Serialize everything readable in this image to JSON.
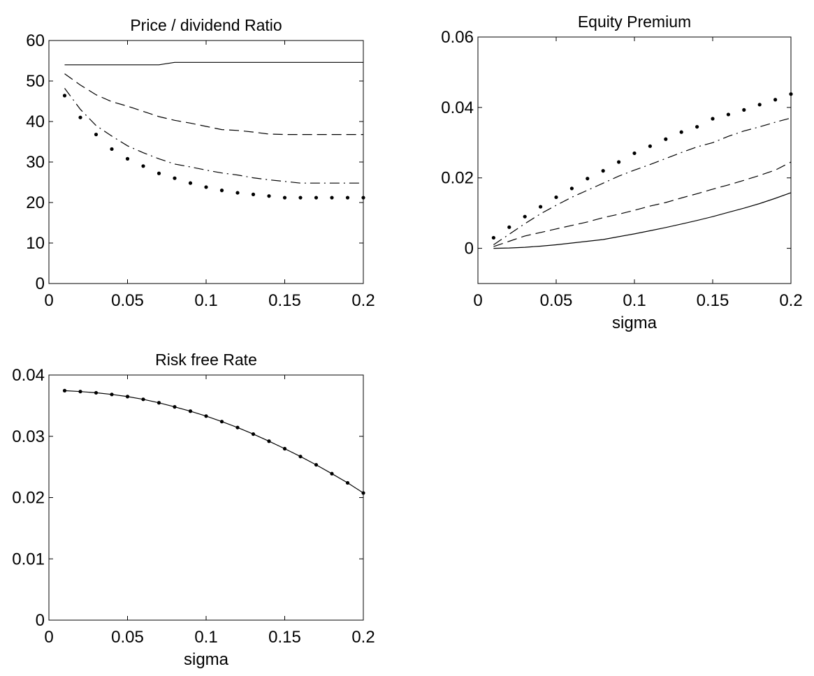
{
  "chart_data": [
    {
      "type": "line",
      "title": "Price / dividend Ratio",
      "xlabel": "",
      "ylabel": "",
      "xlim": [
        0,
        0.2
      ],
      "ylim": [
        0,
        60
      ],
      "xticks": [
        "0",
        "0.05",
        "0.1",
        "0.15",
        "0.2"
      ],
      "yticks": [
        "0",
        "10",
        "20",
        "30",
        "40",
        "50",
        "60"
      ],
      "grid": false,
      "series": [
        {
          "style": "solid",
          "x": [
            0.01,
            0.02,
            0.03,
            0.04,
            0.05,
            0.06,
            0.07,
            0.08,
            0.09,
            0.1,
            0.11,
            0.12,
            0.13,
            0.14,
            0.15,
            0.16,
            0.17,
            0.18,
            0.19,
            0.2
          ],
          "y": [
            54.0,
            54.0,
            54.0,
            54.0,
            54.0,
            54.0,
            54.0,
            54.6,
            54.6,
            54.6,
            54.6,
            54.6,
            54.6,
            54.6,
            54.6,
            54.6,
            54.6,
            54.6,
            54.6,
            54.6
          ]
        },
        {
          "style": "dashed",
          "x": [
            0.01,
            0.02,
            0.03,
            0.04,
            0.05,
            0.06,
            0.07,
            0.08,
            0.09,
            0.1,
            0.11,
            0.12,
            0.13,
            0.14,
            0.15,
            0.16,
            0.17,
            0.18,
            0.19,
            0.2
          ],
          "y": [
            51.8,
            49.0,
            46.6,
            44.9,
            43.8,
            42.5,
            41.2,
            40.3,
            39.6,
            38.8,
            38.0,
            37.8,
            37.4,
            36.9,
            36.8,
            36.8,
            36.8,
            36.8,
            36.8,
            36.8
          ]
        },
        {
          "style": "dashdot",
          "x": [
            0.01,
            0.02,
            0.03,
            0.04,
            0.05,
            0.06,
            0.07,
            0.08,
            0.09,
            0.1,
            0.11,
            0.12,
            0.13,
            0.14,
            0.15,
            0.16,
            0.17,
            0.18,
            0.19,
            0.2
          ],
          "y": [
            48.2,
            43.0,
            39.0,
            36.4,
            34.0,
            32.3,
            30.8,
            29.5,
            28.8,
            28.0,
            27.3,
            26.8,
            26.1,
            25.6,
            25.2,
            24.8,
            24.8,
            24.8,
            24.8,
            24.8
          ]
        },
        {
          "style": "dotted",
          "x": [
            0.01,
            0.02,
            0.03,
            0.04,
            0.05,
            0.06,
            0.07,
            0.08,
            0.09,
            0.1,
            0.11,
            0.12,
            0.13,
            0.14,
            0.15,
            0.16,
            0.17,
            0.18,
            0.19,
            0.2
          ],
          "y": [
            46.4,
            41.0,
            36.8,
            33.2,
            30.8,
            29.0,
            27.2,
            26.0,
            24.8,
            23.8,
            23.0,
            22.4,
            22.0,
            21.6,
            21.2,
            21.2,
            21.2,
            21.2,
            21.2,
            21.2
          ]
        }
      ]
    },
    {
      "type": "line",
      "title": "Equity Premium",
      "xlabel": "sigma",
      "ylabel": "",
      "xlim": [
        0,
        0.2
      ],
      "ylim": [
        -0.01,
        0.06
      ],
      "xticks": [
        "0",
        "0.05",
        "0.1",
        "0.15",
        "0.2"
      ],
      "yticks": [
        "0",
        "0.02",
        "0.04",
        "0.06"
      ],
      "grid": false,
      "series": [
        {
          "style": "solid",
          "x": [
            0.01,
            0.02,
            0.03,
            0.04,
            0.05,
            0.06,
            0.07,
            0.08,
            0.09,
            0.1,
            0.11,
            0.12,
            0.13,
            0.14,
            0.15,
            0.16,
            0.17,
            0.18,
            0.19,
            0.2
          ],
          "y": [
            0.0,
            0.0001,
            0.0003,
            0.0006,
            0.001,
            0.0015,
            0.002,
            0.0025,
            0.0033,
            0.0041,
            0.005,
            0.0059,
            0.0069,
            0.0079,
            0.009,
            0.0102,
            0.0114,
            0.0127,
            0.0142,
            0.0158
          ]
        },
        {
          "style": "dashed",
          "x": [
            0.01,
            0.02,
            0.03,
            0.04,
            0.05,
            0.06,
            0.07,
            0.08,
            0.09,
            0.1,
            0.11,
            0.12,
            0.13,
            0.14,
            0.15,
            0.16,
            0.17,
            0.18,
            0.19,
            0.2
          ],
          "y": [
            0.0005,
            0.002,
            0.0035,
            0.0045,
            0.0055,
            0.0065,
            0.0075,
            0.0087,
            0.0097,
            0.0108,
            0.012,
            0.013,
            0.0143,
            0.0155,
            0.0168,
            0.018,
            0.0193,
            0.0207,
            0.0222,
            0.0245
          ]
        },
        {
          "style": "dashdot",
          "x": [
            0.01,
            0.02,
            0.03,
            0.04,
            0.05,
            0.06,
            0.07,
            0.08,
            0.09,
            0.1,
            0.11,
            0.12,
            0.13,
            0.14,
            0.15,
            0.16,
            0.17,
            0.18,
            0.19,
            0.2
          ],
          "y": [
            0.001,
            0.004,
            0.007,
            0.0098,
            0.0122,
            0.0145,
            0.0165,
            0.0185,
            0.0205,
            0.0222,
            0.0238,
            0.0255,
            0.0272,
            0.0288,
            0.03,
            0.0318,
            0.0333,
            0.0345,
            0.0358,
            0.037
          ]
        },
        {
          "style": "dotted",
          "x": [
            0.01,
            0.02,
            0.03,
            0.04,
            0.05,
            0.06,
            0.07,
            0.08,
            0.09,
            0.1,
            0.11,
            0.12,
            0.13,
            0.14,
            0.15,
            0.16,
            0.17,
            0.18,
            0.19,
            0.2
          ],
          "y": [
            0.003,
            0.006,
            0.009,
            0.0118,
            0.0145,
            0.017,
            0.0198,
            0.022,
            0.0245,
            0.027,
            0.029,
            0.031,
            0.033,
            0.0345,
            0.0368,
            0.038,
            0.0393,
            0.0408,
            0.0422,
            0.0438
          ]
        }
      ]
    },
    {
      "type": "line",
      "title": "Risk free Rate",
      "xlabel": "sigma",
      "ylabel": "",
      "xlim": [
        0,
        0.2
      ],
      "ylim": [
        0,
        0.04
      ],
      "xticks": [
        "0",
        "0.05",
        "0.1",
        "0.15",
        "0.2"
      ],
      "yticks": [
        "0",
        "0.01",
        "0.02",
        "0.03",
        "0.04"
      ],
      "grid": false,
      "series": [
        {
          "style": "solid",
          "x": [
            0.01,
            0.02,
            0.03,
            0.04,
            0.05,
            0.06,
            0.07,
            0.08,
            0.09,
            0.1,
            0.11,
            0.12,
            0.13,
            0.14,
            0.15,
            0.16,
            0.17,
            0.18,
            0.19,
            0.2
          ],
          "y": [
            0.03745,
            0.0373,
            0.0371,
            0.03683,
            0.03648,
            0.03603,
            0.03547,
            0.0348,
            0.0341,
            0.0333,
            0.0324,
            0.03143,
            0.03036,
            0.0292,
            0.02798,
            0.0267,
            0.02535,
            0.0239,
            0.0224,
            0.02075
          ]
        },
        {
          "style": "dotted",
          "x": [
            0.01,
            0.02,
            0.03,
            0.04,
            0.05,
            0.06,
            0.07,
            0.08,
            0.09,
            0.1,
            0.11,
            0.12,
            0.13,
            0.14,
            0.15,
            0.16,
            0.17,
            0.18,
            0.19,
            0.2
          ],
          "y": [
            0.03745,
            0.0373,
            0.0371,
            0.03683,
            0.03648,
            0.03603,
            0.03547,
            0.0348,
            0.0341,
            0.0333,
            0.0324,
            0.03143,
            0.03036,
            0.0292,
            0.02798,
            0.0267,
            0.02535,
            0.0239,
            0.0224,
            0.02075
          ]
        }
      ]
    }
  ]
}
